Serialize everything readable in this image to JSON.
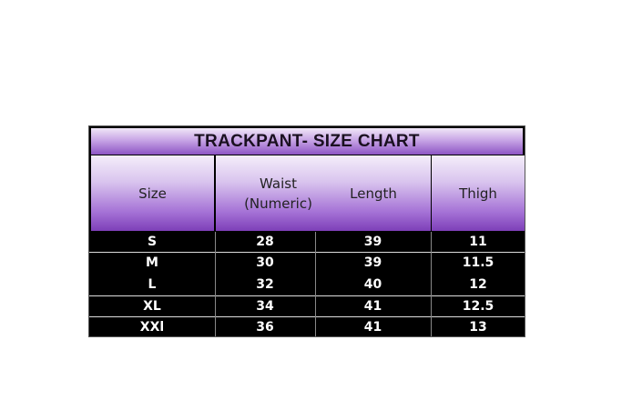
{
  "chart_data": {
    "type": "table",
    "title": "TRACKPANT- SIZE CHART",
    "columns": [
      "Size",
      "Waist (Numeric)",
      "Length",
      "Thigh"
    ],
    "rows": [
      [
        "S",
        "28",
        "39",
        "11"
      ],
      [
        "M",
        "30",
        "39",
        "11.5"
      ],
      [
        "L",
        "32",
        "40",
        "12"
      ],
      [
        "XL",
        "34",
        "41",
        "12.5"
      ],
      [
        "XXl",
        "36",
        "41",
        "13"
      ]
    ],
    "colors": {
      "header_purple": "#8d55c4",
      "row_bg": "#000000",
      "row_text": "#ffffff"
    }
  }
}
